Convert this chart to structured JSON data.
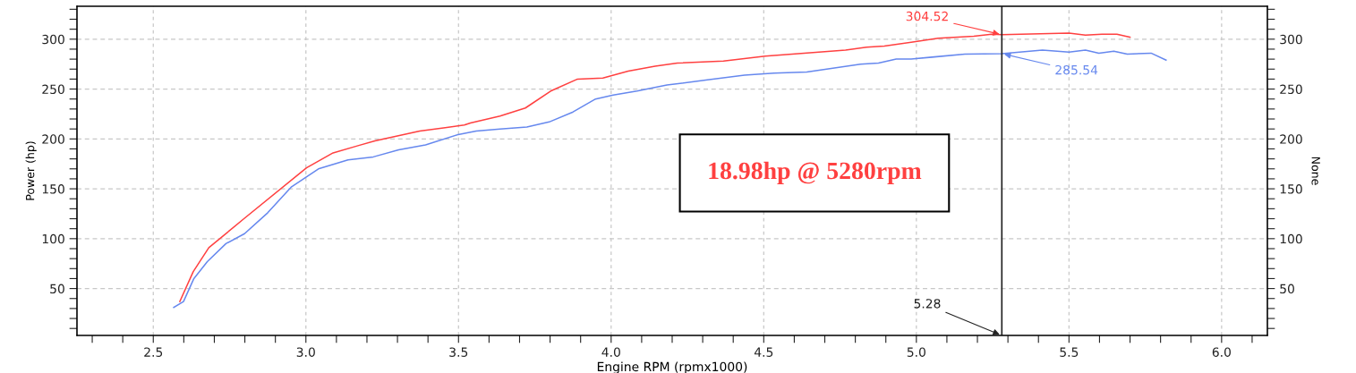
{
  "chart_data": {
    "type": "line",
    "xlabel": "Engine RPM (rpmx1000)",
    "ylabel": "Power (hp)",
    "y2label": "None",
    "xlim": [
      2.25,
      6.15
    ],
    "ylim": [
      3,
      333
    ],
    "y2lim": [
      3,
      333
    ],
    "xticks": [
      {
        "value": 2.3,
        "label": null
      },
      {
        "value": 2.4,
        "label": null
      },
      {
        "value": 2.5,
        "label": "2.5"
      },
      {
        "value": 2.6,
        "label": null
      },
      {
        "value": 2.7,
        "label": null
      },
      {
        "value": 2.8,
        "label": null
      },
      {
        "value": 2.9,
        "label": null
      },
      {
        "value": 3.0,
        "label": "3.0"
      },
      {
        "value": 3.1,
        "label": null
      },
      {
        "value": 3.2,
        "label": null
      },
      {
        "value": 3.3,
        "label": null
      },
      {
        "value": 3.4,
        "label": null
      },
      {
        "value": 3.5,
        "label": "3.5"
      },
      {
        "value": 3.6,
        "label": null
      },
      {
        "value": 3.7,
        "label": null
      },
      {
        "value": 3.8,
        "label": null
      },
      {
        "value": 3.9,
        "label": null
      },
      {
        "value": 4.0,
        "label": "4.0"
      },
      {
        "value": 4.1,
        "label": null
      },
      {
        "value": 4.2,
        "label": null
      },
      {
        "value": 4.3,
        "label": null
      },
      {
        "value": 4.4,
        "label": null
      },
      {
        "value": 4.5,
        "label": "4.5"
      },
      {
        "value": 4.6,
        "label": null
      },
      {
        "value": 4.7,
        "label": null
      },
      {
        "value": 4.8,
        "label": null
      },
      {
        "value": 4.9,
        "label": null
      },
      {
        "value": 5.0,
        "label": "5.0"
      },
      {
        "value": 5.1,
        "label": null
      },
      {
        "value": 5.2,
        "label": null
      },
      {
        "value": 5.3,
        "label": null
      },
      {
        "value": 5.4,
        "label": null
      },
      {
        "value": 5.5,
        "label": "5.5"
      },
      {
        "value": 5.6,
        "label": null
      },
      {
        "value": 5.7,
        "label": null
      },
      {
        "value": 5.8,
        "label": null
      },
      {
        "value": 5.9,
        "label": null
      },
      {
        "value": 6.0,
        "label": "6.0"
      },
      {
        "value": 6.1,
        "label": null
      }
    ],
    "yticks": [
      {
        "value": 10,
        "label": null
      },
      {
        "value": 20,
        "label": null
      },
      {
        "value": 30,
        "label": null
      },
      {
        "value": 40,
        "label": null
      },
      50,
      {
        "value": 60,
        "label": null
      },
      {
        "value": 70,
        "label": null
      },
      {
        "value": 80,
        "label": null
      },
      {
        "value": 90,
        "label": null
      },
      100,
      {
        "value": 110,
        "label": null
      },
      {
        "value": 120,
        "label": null
      },
      {
        "value": 130,
        "label": null
      },
      {
        "value": 140,
        "label": null
      },
      150,
      {
        "value": 160,
        "label": null
      },
      {
        "value": 170,
        "label": null
      },
      {
        "value": 180,
        "label": null
      },
      {
        "value": 190,
        "label": null
      },
      200,
      {
        "value": 210,
        "label": null
      },
      {
        "value": 220,
        "label": null
      },
      {
        "value": 230,
        "label": null
      },
      {
        "value": 240,
        "label": null
      },
      250,
      {
        "value": 260,
        "label": null
      },
      {
        "value": 270,
        "label": null
      },
      {
        "value": 280,
        "label": null
      },
      {
        "value": 290,
        "label": null
      },
      300,
      {
        "value": 310,
        "label": null
      },
      {
        "value": 320,
        "label": null
      },
      {
        "value": 330,
        "label": null
      }
    ],
    "y2ticks": [
      {
        "value": 10,
        "label": null
      },
      {
        "value": 20,
        "label": null
      },
      {
        "value": 30,
        "label": null
      },
      {
        "value": 40,
        "label": null
      },
      50,
      {
        "value": 60,
        "label": null
      },
      {
        "value": 70,
        "label": null
      },
      {
        "value": 80,
        "label": null
      },
      {
        "value": 90,
        "label": null
      },
      100,
      {
        "value": 110,
        "label": null
      },
      {
        "value": 120,
        "label": null
      },
      {
        "value": 130,
        "label": null
      },
      {
        "value": 140,
        "label": null
      },
      150,
      {
        "value": 160,
        "label": null
      },
      {
        "value": 170,
        "label": null
      },
      {
        "value": 180,
        "label": null
      },
      {
        "value": 190,
        "label": null
      },
      200,
      {
        "value": 210,
        "label": null
      },
      {
        "value": 220,
        "label": null
      },
      {
        "value": 230,
        "label": null
      },
      {
        "value": 240,
        "label": null
      },
      250,
      {
        "value": 260,
        "label": null
      },
      {
        "value": 270,
        "label": null
      },
      {
        "value": 280,
        "label": null
      },
      {
        "value": 290,
        "label": null
      },
      300,
      {
        "value": 310,
        "label": null
      },
      {
        "value": 320,
        "label": null
      },
      {
        "value": 330,
        "label": null
      }
    ],
    "grid": true,
    "line_style": "solid",
    "marker": "none",
    "series": [
      {
        "color": "#ff4040",
        "x": [
          2.587,
          2.631,
          2.682,
          2.797,
          3.002,
          3.089,
          3.168,
          3.226,
          3.373,
          3.451,
          3.519,
          3.539,
          3.636,
          3.719,
          3.802,
          3.89,
          3.973,
          4.056,
          4.144,
          4.217,
          4.368,
          4.505,
          4.632,
          4.768,
          4.837,
          4.895,
          4.983,
          5.071,
          5.188,
          5.247,
          5.28,
          5.5,
          5.554,
          5.608,
          5.657,
          5.7
        ],
        "values": [
          37,
          67,
          91,
          120,
          171,
          186,
          193,
          198,
          208,
          211,
          214,
          216,
          223,
          231,
          248,
          260,
          261,
          268,
          273,
          276,
          278,
          283,
          286,
          289,
          292,
          293,
          297,
          301,
          303,
          305,
          304.52,
          306,
          304,
          305,
          305,
          302
        ]
      },
      {
        "color": "#6688ee",
        "x": [
          2.567,
          2.599,
          2.633,
          2.677,
          2.738,
          2.799,
          2.875,
          2.953,
          3.041,
          3.138,
          3.221,
          3.304,
          3.392,
          3.495,
          3.558,
          3.636,
          3.724,
          3.797,
          3.875,
          3.949,
          4.007,
          4.085,
          4.183,
          4.31,
          4.437,
          4.534,
          4.641,
          4.817,
          4.876,
          4.934,
          4.983,
          5.051,
          5.159,
          5.28,
          5.413,
          5.5,
          5.554,
          5.598,
          5.647,
          5.691,
          5.769,
          5.818
        ],
        "values": [
          31,
          37,
          60,
          77,
          95,
          105,
          126,
          152,
          170,
          179,
          182,
          189,
          194,
          204,
          208,
          210,
          212,
          217,
          227,
          240,
          244,
          248,
          254,
          259,
          264,
          266,
          267,
          275,
          276,
          280,
          280,
          282,
          285,
          285.54,
          289,
          287,
          289,
          286,
          288,
          285,
          286,
          279
        ]
      }
    ],
    "ref_lines": [
      {
        "axis": "x",
        "value": 5.28,
        "label": "5.28",
        "color": "#222222"
      }
    ],
    "annotations": [
      {
        "text": "304.52",
        "x": 5.28,
        "y": 304.52
      },
      {
        "text": "285.54",
        "x": 5.28,
        "y": 285.54
      },
      "18.98hp @ 5280rpm"
    ]
  }
}
